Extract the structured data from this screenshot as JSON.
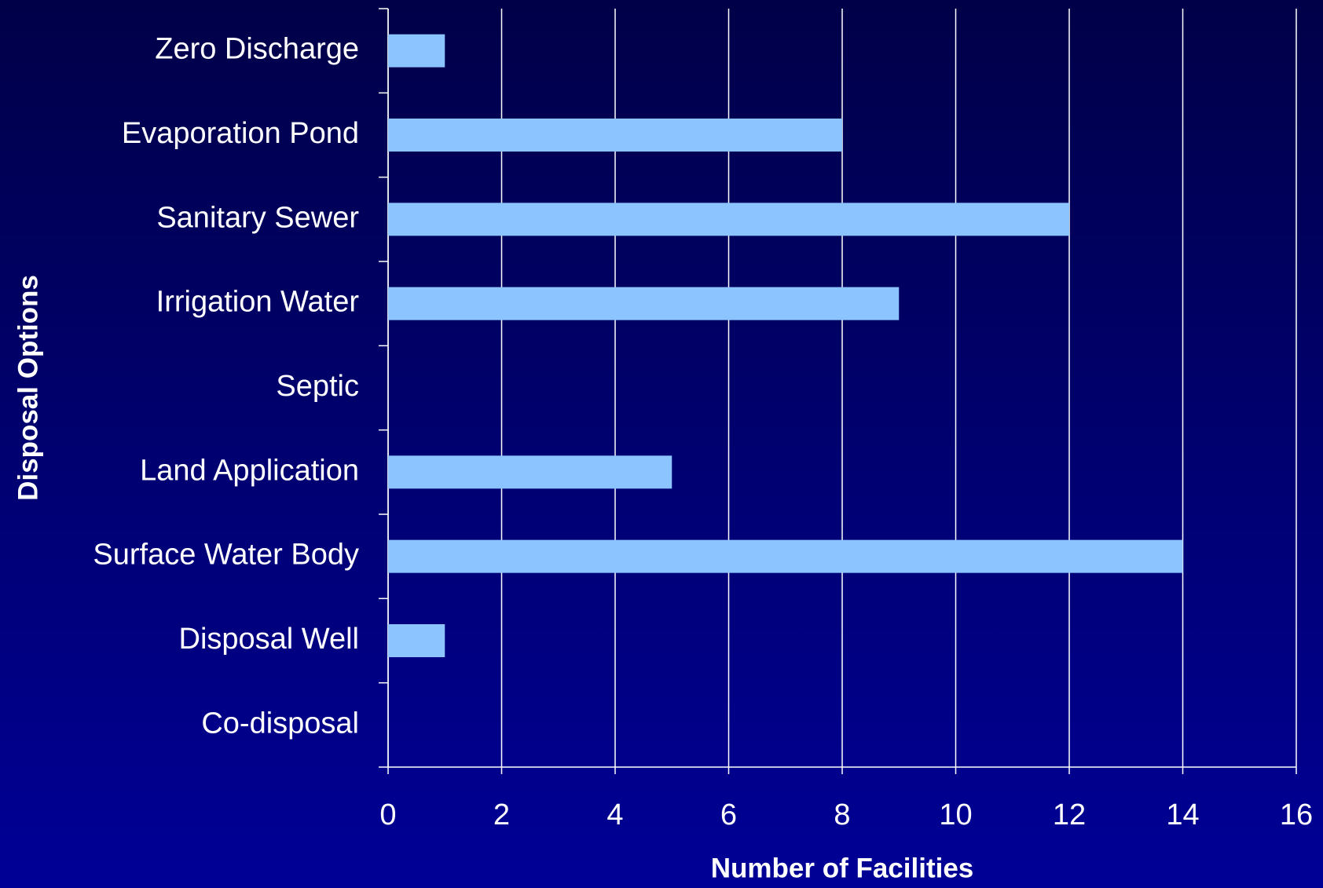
{
  "chart_data": {
    "type": "bar",
    "orientation": "horizontal",
    "x_label": "Number of Facilities",
    "y_label": "Disposal Options",
    "categories": [
      "Zero Discharge",
      "Evaporation Pond",
      "Sanitary Sewer",
      "Irrigation Water",
      "Septic",
      "Land Application",
      "Surface Water Body",
      "Disposal Well",
      "Co-disposal"
    ],
    "values": [
      1,
      8,
      12,
      9,
      0,
      5,
      14,
      1,
      0
    ],
    "color": "#8cc4ff",
    "xlim": [
      0,
      16
    ],
    "xticks": [
      0,
      2,
      4,
      6,
      8,
      10,
      12,
      14,
      16
    ],
    "grid": true
  }
}
